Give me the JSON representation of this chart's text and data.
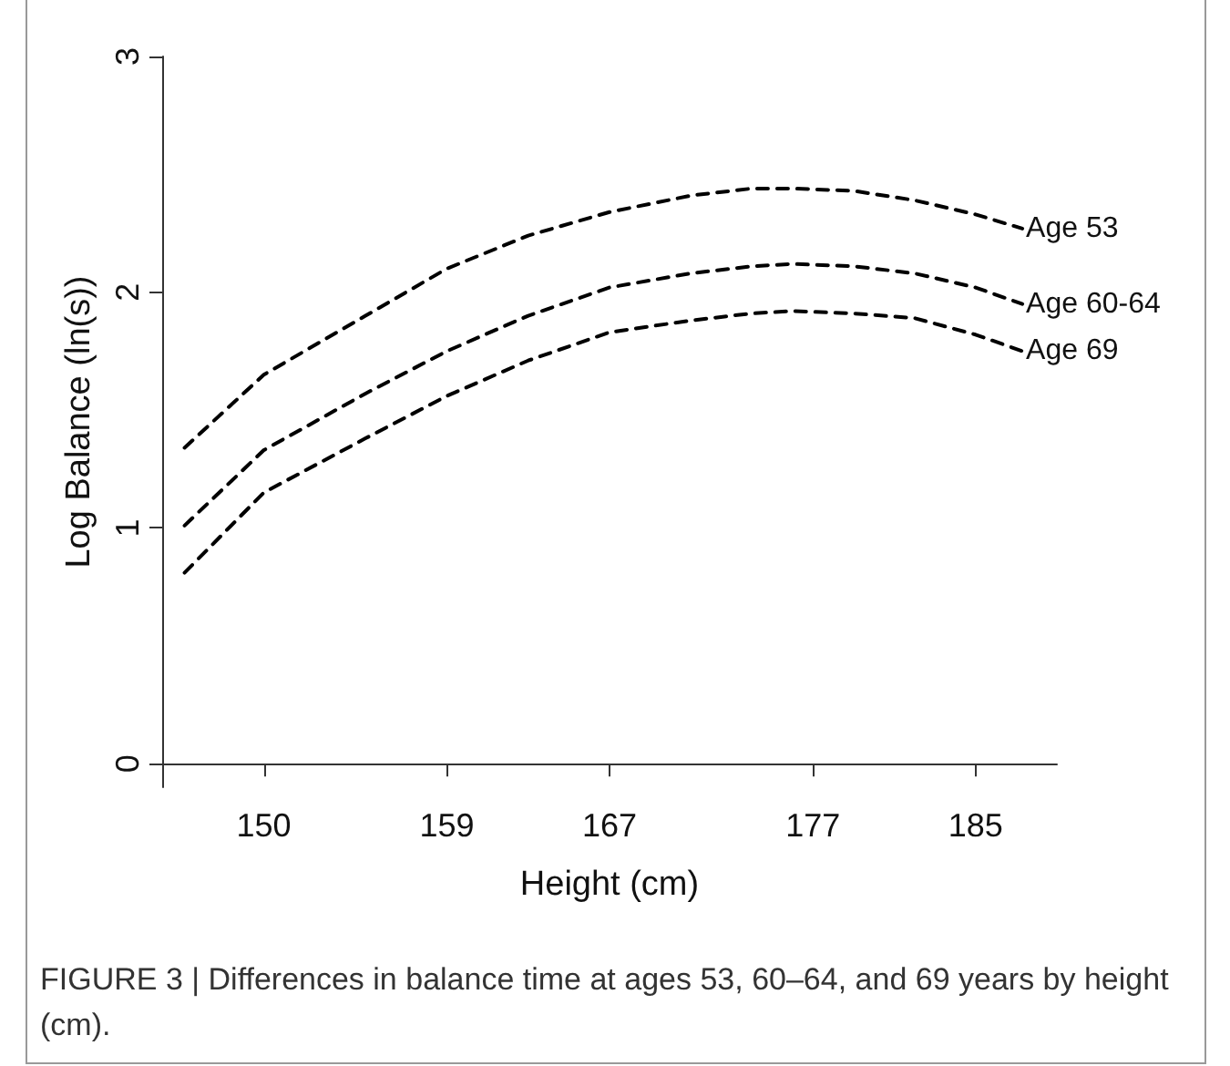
{
  "chart_data": {
    "type": "line",
    "xlabel": "Height (cm)",
    "ylabel": "Log Balance (ln(s))",
    "x": [
      146.1,
      150,
      155,
      159,
      163,
      167,
      171,
      174,
      176,
      179,
      182,
      185,
      187.3
    ],
    "series": [
      {
        "name": "Age 53",
        "color": "#000000",
        "values": [
          1.34,
          1.65,
          1.9,
          2.1,
          2.24,
          2.34,
          2.41,
          2.44,
          2.44,
          2.43,
          2.39,
          2.33,
          2.27
        ]
      },
      {
        "name": "Age 60-64",
        "color": "#000000",
        "values": [
          1.01,
          1.33,
          1.57,
          1.75,
          1.9,
          2.02,
          2.08,
          2.11,
          2.12,
          2.11,
          2.08,
          2.02,
          1.95
        ]
      },
      {
        "name": "Age 69",
        "color": "#000000",
        "values": [
          0.81,
          1.15,
          1.38,
          1.56,
          1.71,
          1.83,
          1.88,
          1.91,
          1.92,
          1.91,
          1.89,
          1.82,
          1.75
        ]
      }
    ],
    "xlim": [
      145,
      189
    ],
    "xticks": [
      150,
      159,
      167,
      177,
      185
    ],
    "ylim": [
      -0.1,
      3
    ],
    "yticks": [
      0,
      1,
      2,
      3
    ],
    "line_style": "dashed",
    "marker": "none",
    "grid": false,
    "legend": false,
    "annotations": [
      "FIGURE 3 | Differences in balance time at ages 53, 60–64, and 69 years by height (cm)."
    ]
  }
}
